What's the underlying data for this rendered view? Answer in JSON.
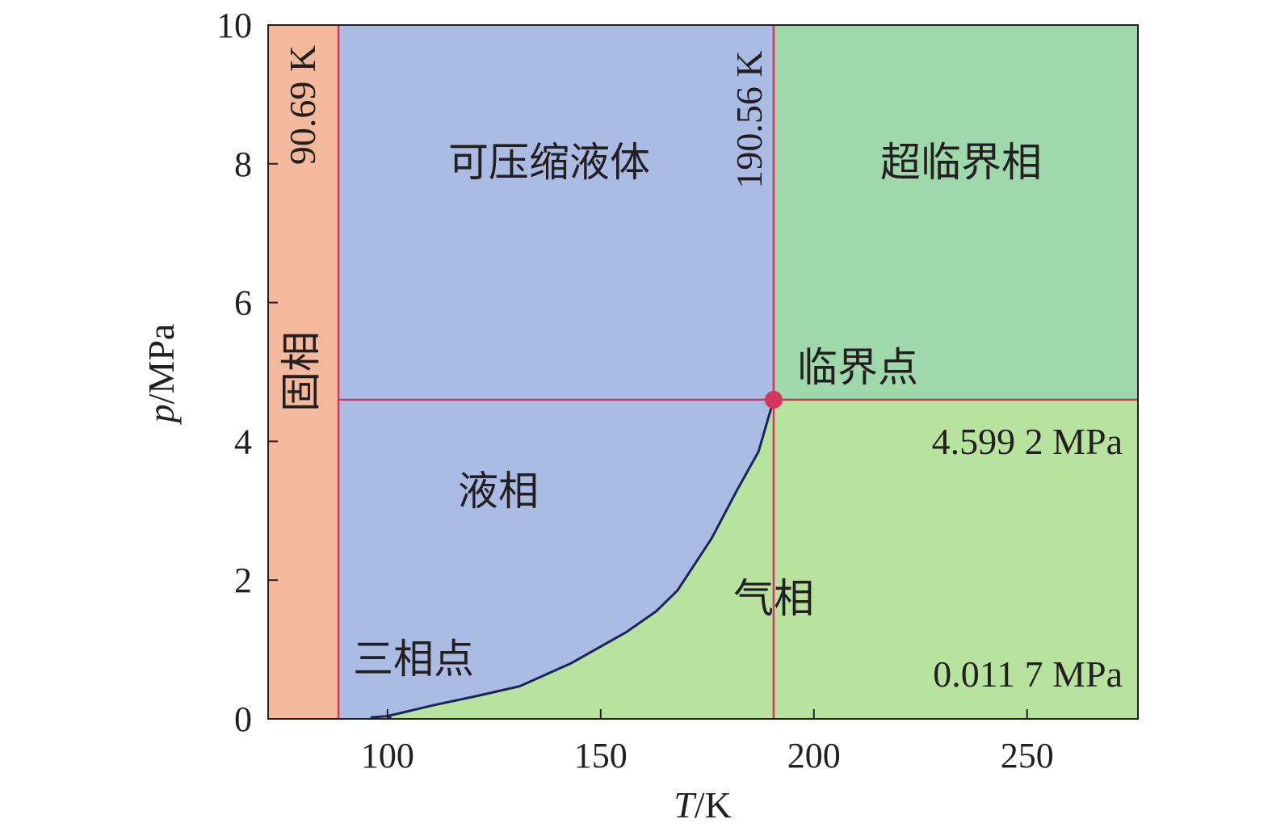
{
  "chart_data": {
    "type": "area",
    "title": "",
    "xlabel_var": "T",
    "xlabel_unit": "/K",
    "ylabel_var": "p",
    "ylabel_unit": "/MPa",
    "xlim": [
      72,
      276
    ],
    "ylim": [
      0,
      10
    ],
    "xticks": [
      100,
      150,
      200,
      250
    ],
    "yticks": [
      0,
      2,
      4,
      6,
      8,
      10
    ],
    "triple_point": {
      "T": 90.69,
      "p": 0.0117
    },
    "critical_point": {
      "T": 190.56,
      "p": 4.5992
    },
    "melting_boundary_T": 88.5,
    "right_edge_T": 276,
    "vapor_pressure_curve": {
      "T": [
        96,
        100,
        111,
        121,
        131,
        143,
        156,
        163,
        168,
        176,
        182,
        187,
        190.56
      ],
      "p": [
        0.02,
        0.04,
        0.2,
        0.33,
        0.47,
        0.8,
        1.25,
        1.55,
        1.85,
        2.6,
        3.3,
        3.85,
        4.5992
      ]
    },
    "colors": {
      "solid": "#f2b99d",
      "liquid": "#aabce4",
      "gas": "#b8e39f",
      "supercritical": "#9ed8ab",
      "boundary": "#d6355e",
      "curve": "#1c2556",
      "critical_point": "#d6355e",
      "axis": "#231f20"
    },
    "labels": {
      "solid": "固相",
      "compressed_liquid": "可压缩液体",
      "liquid": "液相",
      "gas": "气相",
      "supercritical": "超临界相",
      "critical_point": "临界点",
      "triple_point": "三相点",
      "triple_T": "90.69 K",
      "critical_T": "190.56 K",
      "critical_p": "4.599 2 MPa",
      "triple_p": "0.011 7 MPa"
    }
  }
}
